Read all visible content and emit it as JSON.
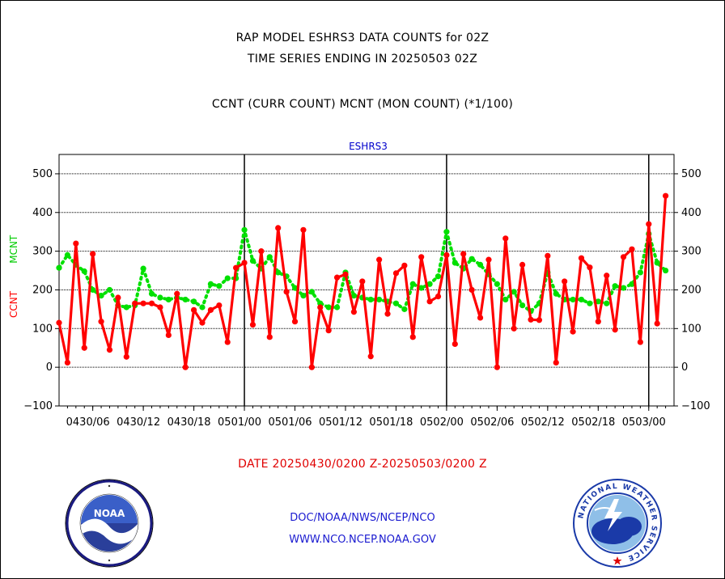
{
  "titles": {
    "line1": "RAP MODEL ESHRS3 DATA COUNTS for 02Z",
    "line2": "TIME SERIES ENDING IN 20250503 02Z",
    "subtitle": "CCNT (CURR COUNT) MCNT (MON COUNT) (*1/100)",
    "date_range": "DATE 20250430/0200 Z-20250503/0200 Z"
  },
  "footer": {
    "org": "DOC/NOAA/NWS/NCEP/NCO",
    "url": "WWW.NCO.NCEP.NOAA.GOV"
  },
  "logos": {
    "noaa_text": "NOAA",
    "nws_ring_text": "NATIONAL WEATHER SERVICE"
  },
  "colors": {
    "ccnt": "#ff0000",
    "mcnt": "#00e000",
    "panel_label": "#0000cc",
    "grid": "#000000"
  },
  "chart_data": {
    "type": "line",
    "panel_label": "ESHRS3",
    "ylabel_left": "CCNT",
    "ylabel_right": "MCNT",
    "xlim": [
      0,
      73
    ],
    "ylim": [
      -100,
      550
    ],
    "yticks": [
      -100,
      0,
      100,
      200,
      300,
      400,
      500
    ],
    "grid_y": [
      0,
      100,
      200,
      300,
      400,
      500
    ],
    "x_ticks": [
      {
        "x": 4,
        "label": "0430/06"
      },
      {
        "x": 10,
        "label": "0430/12"
      },
      {
        "x": 16,
        "label": "0430/18"
      },
      {
        "x": 22,
        "label": "0501/00"
      },
      {
        "x": 28,
        "label": "0501/06"
      },
      {
        "x": 34,
        "label": "0501/12"
      },
      {
        "x": 40,
        "label": "0501/18"
      },
      {
        "x": 46,
        "label": "0502/00"
      },
      {
        "x": 52,
        "label": "0502/06"
      },
      {
        "x": 58,
        "label": "0502/12"
      },
      {
        "x": 64,
        "label": "0502/18"
      },
      {
        "x": 70,
        "label": "0503/00"
      }
    ],
    "day_boundaries": [
      22,
      46,
      70
    ],
    "series": [
      {
        "name": "CCNT",
        "color": "#ff0000",
        "style": "solid",
        "points": [
          [
            0,
            115
          ],
          [
            1,
            12
          ],
          [
            2,
            320
          ],
          [
            3,
            50
          ],
          [
            4,
            293
          ],
          [
            5,
            118
          ],
          [
            6,
            45
          ],
          [
            7,
            180
          ],
          [
            8,
            27
          ],
          [
            9,
            165
          ],
          [
            10,
            165
          ],
          [
            11,
            165
          ],
          [
            12,
            155
          ],
          [
            13,
            83
          ],
          [
            14,
            190
          ],
          [
            15,
            0
          ],
          [
            16,
            148
          ],
          [
            17,
            115
          ],
          [
            18,
            148
          ],
          [
            19,
            160
          ],
          [
            20,
            65
          ],
          [
            21,
            257
          ],
          [
            22,
            270
          ],
          [
            23,
            110
          ],
          [
            24,
            300
          ],
          [
            25,
            78
          ],
          [
            26,
            360
          ],
          [
            27,
            195
          ],
          [
            28,
            118
          ],
          [
            29,
            355
          ],
          [
            30,
            0
          ],
          [
            31,
            155
          ],
          [
            32,
            95
          ],
          [
            33,
            232
          ],
          [
            34,
            240
          ],
          [
            35,
            143
          ],
          [
            36,
            222
          ],
          [
            37,
            28
          ],
          [
            38,
            278
          ],
          [
            39,
            138
          ],
          [
            40,
            243
          ],
          [
            41,
            263
          ],
          [
            42,
            78
          ],
          [
            43,
            285
          ],
          [
            44,
            170
          ],
          [
            45,
            183
          ],
          [
            46,
            290
          ],
          [
            47,
            60
          ],
          [
            48,
            293
          ],
          [
            49,
            200
          ],
          [
            50,
            128
          ],
          [
            51,
            278
          ],
          [
            52,
            0
          ],
          [
            53,
            333
          ],
          [
            54,
            100
          ],
          [
            55,
            265
          ],
          [
            56,
            123
          ],
          [
            57,
            122
          ],
          [
            58,
            288
          ],
          [
            59,
            12
          ],
          [
            60,
            222
          ],
          [
            61,
            92
          ],
          [
            62,
            282
          ],
          [
            63,
            258
          ],
          [
            64,
            118
          ],
          [
            65,
            237
          ],
          [
            66,
            97
          ],
          [
            67,
            285
          ],
          [
            68,
            305
          ],
          [
            69,
            65
          ],
          [
            70,
            370
          ],
          [
            71,
            113
          ],
          [
            72,
            443
          ]
        ]
      },
      {
        "name": "MCNT",
        "color": "#00e000",
        "style": "dotted",
        "points": [
          [
            0,
            257
          ],
          [
            1,
            290
          ],
          [
            2,
            265
          ],
          [
            3,
            248
          ],
          [
            4,
            200
          ],
          [
            5,
            185
          ],
          [
            6,
            200
          ],
          [
            7,
            160
          ],
          [
            8,
            155
          ],
          [
            9,
            160
          ],
          [
            10,
            255
          ],
          [
            11,
            190
          ],
          [
            12,
            180
          ],
          [
            13,
            175
          ],
          [
            14,
            180
          ],
          [
            15,
            175
          ],
          [
            16,
            170
          ],
          [
            17,
            155
          ],
          [
            18,
            215
          ],
          [
            19,
            210
          ],
          [
            20,
            230
          ],
          [
            21,
            230
          ],
          [
            22,
            355
          ],
          [
            23,
            275
          ],
          [
            24,
            255
          ],
          [
            25,
            285
          ],
          [
            26,
            245
          ],
          [
            27,
            235
          ],
          [
            28,
            205
          ],
          [
            29,
            185
          ],
          [
            30,
            195
          ],
          [
            31,
            165
          ],
          [
            32,
            155
          ],
          [
            33,
            155
          ],
          [
            34,
            245
          ],
          [
            35,
            185
          ],
          [
            36,
            180
          ],
          [
            37,
            175
          ],
          [
            38,
            175
          ],
          [
            39,
            170
          ],
          [
            40,
            165
          ],
          [
            41,
            150
          ],
          [
            42,
            215
          ],
          [
            43,
            205
          ],
          [
            44,
            215
          ],
          [
            45,
            235
          ],
          [
            46,
            350
          ],
          [
            47,
            270
          ],
          [
            48,
            255
          ],
          [
            49,
            280
          ],
          [
            50,
            265
          ],
          [
            51,
            240
          ],
          [
            52,
            215
          ],
          [
            53,
            175
          ],
          [
            54,
            195
          ],
          [
            55,
            160
          ],
          [
            56,
            145
          ],
          [
            57,
            165
          ],
          [
            58,
            245
          ],
          [
            59,
            190
          ],
          [
            60,
            175
          ],
          [
            61,
            175
          ],
          [
            62,
            175
          ],
          [
            63,
            165
          ],
          [
            64,
            170
          ],
          [
            65,
            165
          ],
          [
            66,
            210
          ],
          [
            67,
            205
          ],
          [
            68,
            215
          ],
          [
            69,
            245
          ],
          [
            70,
            345
          ],
          [
            71,
            270
          ],
          [
            72,
            250
          ]
        ]
      }
    ]
  }
}
